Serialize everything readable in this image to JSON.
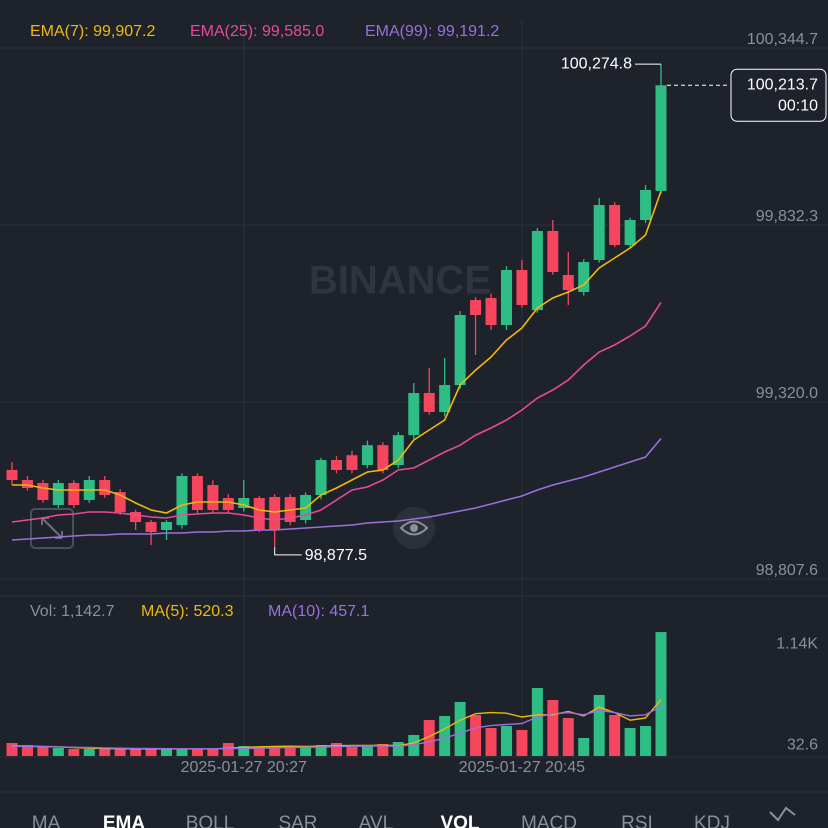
{
  "chart_data": {
    "type": "candlestick",
    "watermark": "BINANCE",
    "categories": [
      null,
      null,
      null,
      null,
      null,
      null,
      null,
      null,
      null,
      null,
      null,
      null,
      null,
      null,
      null,
      "2025-01-27 20:27",
      null,
      null,
      null,
      null,
      null,
      null,
      null,
      null,
      null,
      null,
      null,
      null,
      null,
      null,
      null,
      null,
      null,
      "2025-01-27 20:45",
      null,
      null,
      null,
      null,
      null,
      null,
      null,
      null,
      null
    ],
    "open": [
      99099.9,
      99070.9,
      99062.2,
      98998.5,
      99062.2,
      99013.0,
      99070.9,
      99036.0,
      98978.3,
      98949.3,
      98926.2,
      98940.6,
      99082.5,
      99056.4,
      99018.8,
      98989.8,
      99018.8,
      99021.7,
      99021.7,
      98955.1,
      99027.5,
      99128.8,
      99142.6,
      99114.3,
      99171.8,
      99114.3,
      99200.8,
      99322.8,
      99267.8,
      99345.9,
      99592.0,
      99597.8,
      99519.6,
      99678.9,
      99563.0,
      99791.8,
      99664.4,
      99615.2,
      99707.8,
      99867.0,
      99751.2,
      99823.6,
      99907.6
    ],
    "high": [
      99123.0,
      99082.5,
      99070.9,
      99070.9,
      99070.0,
      99082.5,
      99082.5,
      99045.0,
      98985.0,
      98955.0,
      98955.1,
      99090.0,
      99090.0,
      99070.0,
      99030.0,
      99070.9,
      99025.0,
      99030.0,
      99030.0,
      99035.0,
      99135.0,
      99140.0,
      99155.0,
      99185.0,
      99180.0,
      99210.0,
      99351.7,
      99395.1,
      99424.1,
      99560.0,
      99600.0,
      99610.0,
      99690.0,
      99707.8,
      99800.0,
      99823.6,
      99730.9,
      99710.0,
      99887.3,
      99875.0,
      99830.0,
      99924.9,
      100274.8
    ],
    "low": [
      99056.4,
      99040.0,
      99005.0,
      98990.0,
      98990.0,
      99005.0,
      99020.0,
      98970.0,
      98926.2,
      98882.7,
      98897.2,
      98930.0,
      98975.0,
      98975.0,
      98975.0,
      98980.0,
      98920.0,
      98877.5,
      98940.0,
      98945.0,
      99015.0,
      99090.0,
      99090.0,
      99105.0,
      99090.0,
      99105.0,
      99190.0,
      99260.0,
      99255.0,
      99335.0,
      99432.8,
      99505.0,
      99505.0,
      99570.0,
      99555.0,
      99665.0,
      99577.5,
      99605.0,
      99700.0,
      99745.0,
      99745.0,
      99815.0,
      99900.0
    ],
    "close": [
      99070.9,
      99047.7,
      99013.0,
      99062.2,
      98998.5,
      99070.9,
      99027.5,
      98978.3,
      98949.3,
      98920.4,
      98949.3,
      99082.5,
      98984.0,
      98984.0,
      98984.0,
      99018.8,
      98926.2,
      98926.2,
      98949.3,
      99027.5,
      99128.8,
      99099.9,
      99099.9,
      99171.8,
      99099.9,
      99200.8,
      99322.8,
      99267.8,
      99345.9,
      99548.6,
      99548.6,
      99519.6,
      99678.9,
      99577.5,
      99791.8,
      99673.1,
      99621.0,
      99702.0,
      99867.0,
      99751.2,
      99823.6,
      99910.5,
      100213.7
    ],
    "up_color": "#2ebd85",
    "down_color": "#f6465d",
    "ylim": [
      98752.5,
      100402.6
    ],
    "yticks": [
      {
        "value": 100344.7,
        "label": "100,344.7"
      },
      {
        "value": 99832.3,
        "label": "99,832.3"
      },
      {
        "value": 99320.0,
        "label": "99,320.0"
      },
      {
        "value": 98807.6,
        "label": "98,807.6"
      }
    ],
    "grid": true,
    "series": [
      {
        "name": "EMA(7): 99,907.2",
        "color": "#f0b90b",
        "values": [
          99056.4,
          99056.4,
          99047.7,
          99041.9,
          99041.9,
          99041.9,
          99041.9,
          99027.5,
          99004.3,
          98984.0,
          98975.4,
          98998.5,
          99007.2,
          99007.2,
          99007.2,
          98998.5,
          98984.0,
          98978.3,
          98984.0,
          98989.8,
          99027.5,
          99047.7,
          99070.9,
          99094.1,
          99099.9,
          99128.8,
          99186.7,
          99215.6,
          99244.6,
          99345.9,
          99389.2,
          99427.0,
          99476.2,
          99511.0,
          99568.8,
          99597.8,
          99615.2,
          99635.4,
          99684.6,
          99713.6,
          99742.5,
          99780.2,
          99907.2
        ]
      },
      {
        "name": "EMA(25): 99,585.0",
        "color": "#e8499a",
        "values": [
          98949.3,
          98955.1,
          98960.9,
          98969.6,
          98972.5,
          98978.3,
          98978.3,
          98975.4,
          98969.6,
          98963.8,
          98960.9,
          98969.6,
          98972.5,
          98975.4,
          98975.4,
          98969.6,
          98960.9,
          98955.1,
          98960.9,
          98969.6,
          98984.0,
          99013.0,
          99041.9,
          99050.6,
          99070.9,
          99099.9,
          99105.6,
          99128.8,
          99151.9,
          99171.8,
          99200.8,
          99221.4,
          99244.6,
          99273.5,
          99308.3,
          99331.5,
          99360.4,
          99403.8,
          99441.5,
          99461.7,
          99487.8,
          99516.7,
          99585.0
        ]
      },
      {
        "name": "EMA(99): 99,191.2",
        "color": "#9b6fdc",
        "values": [
          98897.2,
          98900.1,
          98903.0,
          98905.9,
          98908.8,
          98911.7,
          98911.7,
          98914.6,
          98914.6,
          98914.6,
          98917.5,
          98917.5,
          98920.4,
          98920.4,
          98923.3,
          98923.3,
          98926.2,
          98926.2,
          98929.0,
          98931.9,
          98934.8,
          98937.7,
          98940.6,
          98946.4,
          98949.3,
          98952.2,
          98958.0,
          98963.8,
          98972.5,
          98981.2,
          98989.8,
          99001.4,
          99013.0,
          99024.6,
          99041.9,
          99056.4,
          99068.0,
          99079.6,
          99094.1,
          99108.6,
          99123.0,
          99137.5,
          99191.2
        ]
      }
    ],
    "last_price": {
      "value": 100213.7,
      "label": "100,213.7",
      "countdown": "00:10"
    },
    "high_marker": {
      "value": 100274.8,
      "label": "100,274.8"
    },
    "low_marker": {
      "value": 98877.5,
      "label": "98,877.5"
    },
    "volume": {
      "type": "bar",
      "title": "Vol: 1,142.7",
      "values": [
        119.9,
        101.4,
        83.0,
        73.8,
        64.5,
        64.5,
        64.5,
        64.5,
        64.5,
        64.5,
        64.5,
        64.5,
        64.5,
        64.5,
        119.9,
        92.2,
        83.0,
        92.2,
        83.0,
        92.2,
        101.4,
        119.9,
        83.0,
        101.4,
        110.6,
        129.1,
        193.6,
        331.9,
        368.8,
        497.9,
        378.0,
        258.2,
        276.6,
        239.7,
        627.0,
        516.3,
        350.4,
        166.0,
        562.4,
        378.0,
        258.2,
        276.6,
        1142.7
      ],
      "ylim": [
        0,
        1253.9
      ],
      "yticks": [
        {
          "value": 1140,
          "label": "1.14K"
        },
        32.6
      ],
      "series": [
        {
          "name": "MA(5): 520.3",
          "color": "#f0b90b",
          "values": [
            95,
            90,
            88,
            85,
            78,
            72,
            68,
            66,
            65,
            65,
            65,
            65,
            65,
            65,
            72,
            78,
            85,
            88,
            90,
            88,
            90,
            95,
            98,
            97,
            100,
            95,
            120,
            180,
            250,
            330,
            390,
            400,
            395,
            360,
            380,
            380,
            410,
            370,
            450,
            400,
            330,
            350,
            520.3
          ]
        },
        {
          "name": "MA(10): 457.1",
          "color": "#9b6fdc",
          "values": [
            90,
            88,
            86,
            84,
            80,
            78,
            75,
            72,
            70,
            68,
            67,
            66,
            66,
            66,
            68,
            70,
            72,
            75,
            78,
            80,
            83,
            86,
            90,
            92,
            93,
            90,
            105,
            130,
            165,
            210,
            260,
            280,
            290,
            300,
            360,
            390,
            400,
            380,
            420,
            400,
            370,
            380,
            457.1
          ]
        }
      ]
    }
  },
  "tabs": [
    {
      "label": "MA",
      "active": false
    },
    {
      "label": "EMA",
      "active": true
    },
    {
      "label": "BOLL",
      "active": false
    },
    {
      "label": "SAR",
      "active": false
    },
    {
      "label": "AVL",
      "active": false
    },
    {
      "label": "VOL",
      "active": true
    },
    {
      "label": "MACD",
      "active": false
    },
    {
      "label": "RSI",
      "active": false
    },
    {
      "label": "KDJ",
      "active": false
    }
  ]
}
